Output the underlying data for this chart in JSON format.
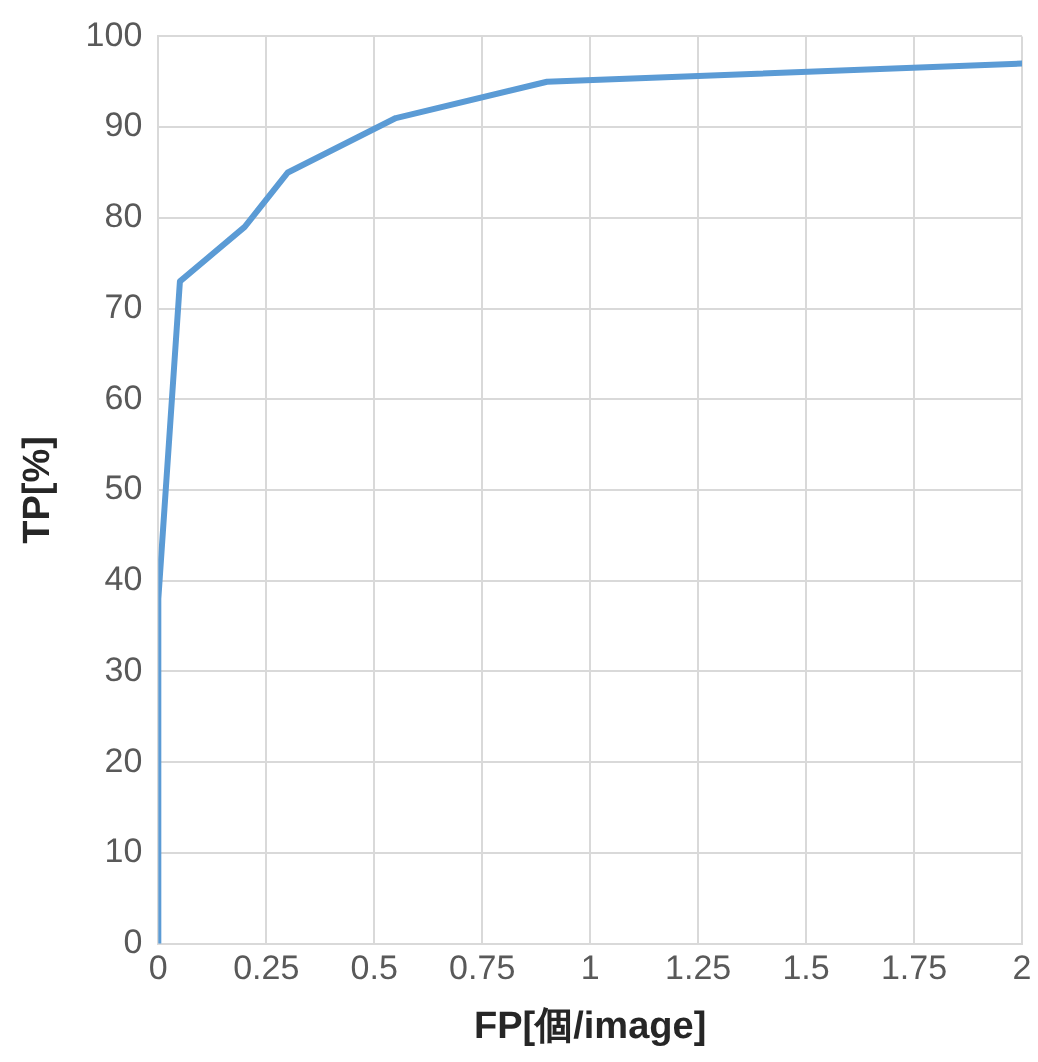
{
  "chart_data": {
    "type": "line",
    "xlabel": "FP[個/image]",
    "ylabel": "TP[%]",
    "series": [
      {
        "color": "#5b9bd5",
        "x": [
          0,
          0,
          0.05,
          0.2,
          0.3,
          0.55,
          0.9,
          2
        ],
        "values": [
          0,
          38,
          73,
          79,
          85,
          91,
          95,
          97
        ]
      }
    ],
    "xlim": [
      0,
      2
    ],
    "xticks": [
      0,
      0.25,
      0.5,
      0.75,
      1,
      1.25,
      1.5,
      1.75,
      2
    ],
    "ylim": [
      0,
      100
    ],
    "yticks": [
      0,
      10,
      20,
      30,
      40,
      50,
      60,
      70,
      80,
      90,
      100
    ],
    "grid": true,
    "legend": false,
    "marker": "none",
    "line_style": "solid"
  }
}
